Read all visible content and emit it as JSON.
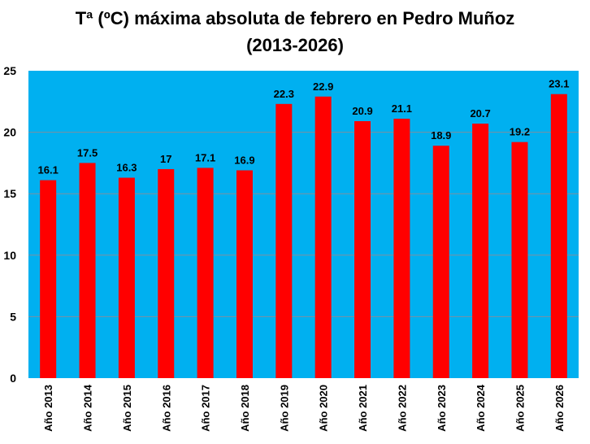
{
  "chart_data": {
    "type": "bar",
    "title_line1": "Tª (ºC) máxima absoluta de febrero en Pedro Muñoz",
    "title_line2": "(2013-2026)",
    "xlabel": "",
    "ylabel": "",
    "categories": [
      "Año 2013",
      "Año 2014",
      "Año 2015",
      "Año 2016",
      "Año 2017",
      "Año 2018",
      "Año 2019",
      "Año 2020",
      "Año 2021",
      "Año 2022",
      "Año 2023",
      "Año 2024",
      "Año 2025",
      "Año 2026"
    ],
    "values": [
      16.1,
      17.5,
      16.3,
      17,
      17.1,
      16.9,
      22.3,
      22.9,
      20.9,
      21.1,
      18.9,
      20.7,
      19.2,
      23.1
    ],
    "ylim": [
      0,
      25
    ],
    "yticks": [
      0,
      5,
      10,
      15,
      20,
      25
    ],
    "grid": true,
    "legend": "none",
    "colors": {
      "bar": "#ff0000",
      "plot_bg": "#00b0f0",
      "grid": "#7f8f9f"
    }
  }
}
